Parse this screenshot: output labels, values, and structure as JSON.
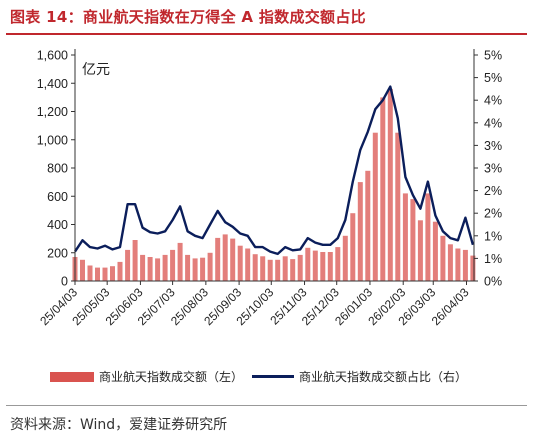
{
  "title": "图表 14：商业航天指数在万得全 A 指数成交额占比",
  "unit_label": "亿元",
  "source": "资料来源：Wind，爱建证券研究所",
  "colors": {
    "bar": "#d9534f",
    "line": "#0b1e5b",
    "title": "#c0272d"
  },
  "chart_data": {
    "type": "bar+line",
    "title": "图表 14：商业航天指数在万得全 A 指数成交额占比",
    "ylabel_left": "亿元",
    "ylim_left": [
      0,
      1600
    ],
    "yticks_left": [
      "0",
      "200",
      "400",
      "600",
      "800",
      "1,000",
      "1,200",
      "1,400",
      "1,600"
    ],
    "ylim_right": [
      0,
      5
    ],
    "yticks_right": [
      "0%",
      "1%",
      "1%",
      "2%",
      "2%",
      "3%",
      "3%",
      "4%",
      "4%",
      "5%",
      "5%"
    ],
    "xticks": [
      "25/04/03",
      "25/05/03",
      "25/06/03",
      "25/07/03",
      "25/08/03",
      "25/09/03",
      "25/10/03",
      "25/11/03",
      "25/12/03",
      "26/01/03",
      "26/02/03",
      "26/03/03",
      "26/04/03"
    ],
    "x_range": [
      "25/04/03",
      "26/04/10"
    ],
    "grid": false,
    "legend_position": "bottom",
    "series": [
      {
        "name": "商业航天指数成交额（左）",
        "kind": "bar",
        "axis": "left",
        "points": [
          [
            "25/04/03",
            170
          ],
          [
            "25/04/10",
            150
          ],
          [
            "25/04/17",
            110
          ],
          [
            "25/04/24",
            95
          ],
          [
            "25/05/01",
            95
          ],
          [
            "25/05/08",
            105
          ],
          [
            "25/05/15",
            135
          ],
          [
            "25/05/22",
            220
          ],
          [
            "25/05/29",
            290
          ],
          [
            "25/06/05",
            185
          ],
          [
            "25/06/12",
            170
          ],
          [
            "25/06/19",
            160
          ],
          [
            "25/06/26",
            185
          ],
          [
            "25/07/03",
            220
          ],
          [
            "25/07/10",
            270
          ],
          [
            "25/07/17",
            185
          ],
          [
            "25/07/24",
            160
          ],
          [
            "25/07/31",
            165
          ],
          [
            "25/08/07",
            200
          ],
          [
            "25/08/14",
            305
          ],
          [
            "25/08/21",
            330
          ],
          [
            "25/08/28",
            300
          ],
          [
            "25/09/04",
            250
          ],
          [
            "25/09/11",
            230
          ],
          [
            "25/09/18",
            190
          ],
          [
            "25/09/25",
            175
          ],
          [
            "25/10/02",
            150
          ],
          [
            "25/10/09",
            150
          ],
          [
            "25/10/16",
            175
          ],
          [
            "25/10/23",
            155
          ],
          [
            "25/10/30",
            185
          ],
          [
            "25/11/06",
            235
          ],
          [
            "25/11/13",
            215
          ],
          [
            "25/11/20",
            205
          ],
          [
            "25/11/27",
            205
          ],
          [
            "25/12/04",
            240
          ],
          [
            "25/12/11",
            320
          ],
          [
            "25/12/18",
            480
          ],
          [
            "25/12/25",
            700
          ],
          [
            "26/01/01",
            780
          ],
          [
            "26/01/08",
            1050
          ],
          [
            "26/01/15",
            1300
          ],
          [
            "26/01/22",
            1360
          ],
          [
            "26/01/29",
            1050
          ],
          [
            "26/02/05",
            620
          ],
          [
            "26/02/12",
            580
          ],
          [
            "26/02/19",
            430
          ],
          [
            "26/02/26",
            620
          ],
          [
            "26/03/05",
            420
          ],
          [
            "26/03/12",
            320
          ],
          [
            "26/03/19",
            260
          ],
          [
            "26/03/26",
            230
          ],
          [
            "26/04/02",
            220
          ],
          [
            "26/04/09",
            180
          ]
        ]
      },
      {
        "name": "商业航天指数成交额占比（右）",
        "kind": "line",
        "axis": "right",
        "points": [
          [
            "25/04/03",
            0.65
          ],
          [
            "25/04/10",
            0.9
          ],
          [
            "25/04/17",
            0.75
          ],
          [
            "25/04/24",
            0.72
          ],
          [
            "25/05/01",
            0.78
          ],
          [
            "25/05/08",
            0.7
          ],
          [
            "25/05/15",
            0.75
          ],
          [
            "25/05/22",
            1.7
          ],
          [
            "25/05/29",
            1.7
          ],
          [
            "25/06/05",
            1.18
          ],
          [
            "25/06/12",
            1.08
          ],
          [
            "25/06/19",
            1.05
          ],
          [
            "25/06/26",
            1.1
          ],
          [
            "25/07/03",
            1.35
          ],
          [
            "25/07/10",
            1.65
          ],
          [
            "25/07/17",
            1.1
          ],
          [
            "25/07/24",
            1.0
          ],
          [
            "25/07/31",
            0.95
          ],
          [
            "25/08/07",
            1.25
          ],
          [
            "25/08/14",
            1.55
          ],
          [
            "25/08/21",
            1.3
          ],
          [
            "25/08/28",
            1.2
          ],
          [
            "25/09/04",
            1.05
          ],
          [
            "25/09/11",
            1.0
          ],
          [
            "25/09/18",
            0.75
          ],
          [
            "25/09/25",
            0.75
          ],
          [
            "25/10/02",
            0.65
          ],
          [
            "25/10/09",
            0.6
          ],
          [
            "25/10/16",
            0.75
          ],
          [
            "25/10/23",
            0.68
          ],
          [
            "25/10/30",
            0.7
          ],
          [
            "25/11/06",
            0.95
          ],
          [
            "25/11/13",
            0.85
          ],
          [
            "25/11/20",
            0.8
          ],
          [
            "25/11/27",
            0.8
          ],
          [
            "25/12/04",
            0.95
          ],
          [
            "25/12/11",
            1.35
          ],
          [
            "25/12/18",
            2.2
          ],
          [
            "25/12/25",
            2.9
          ],
          [
            "26/01/01",
            3.3
          ],
          [
            "26/01/08",
            3.8
          ],
          [
            "26/01/15",
            4.0
          ],
          [
            "26/01/22",
            4.3
          ],
          [
            "26/01/29",
            3.6
          ],
          [
            "26/02/05",
            2.3
          ],
          [
            "26/02/12",
            1.9
          ],
          [
            "26/02/19",
            1.6
          ],
          [
            "26/02/26",
            2.2
          ],
          [
            "26/03/05",
            1.45
          ],
          [
            "26/03/12",
            1.1
          ],
          [
            "26/03/19",
            0.95
          ],
          [
            "26/03/26",
            0.9
          ],
          [
            "26/04/02",
            1.4
          ],
          [
            "26/04/09",
            0.8
          ]
        ]
      }
    ]
  }
}
